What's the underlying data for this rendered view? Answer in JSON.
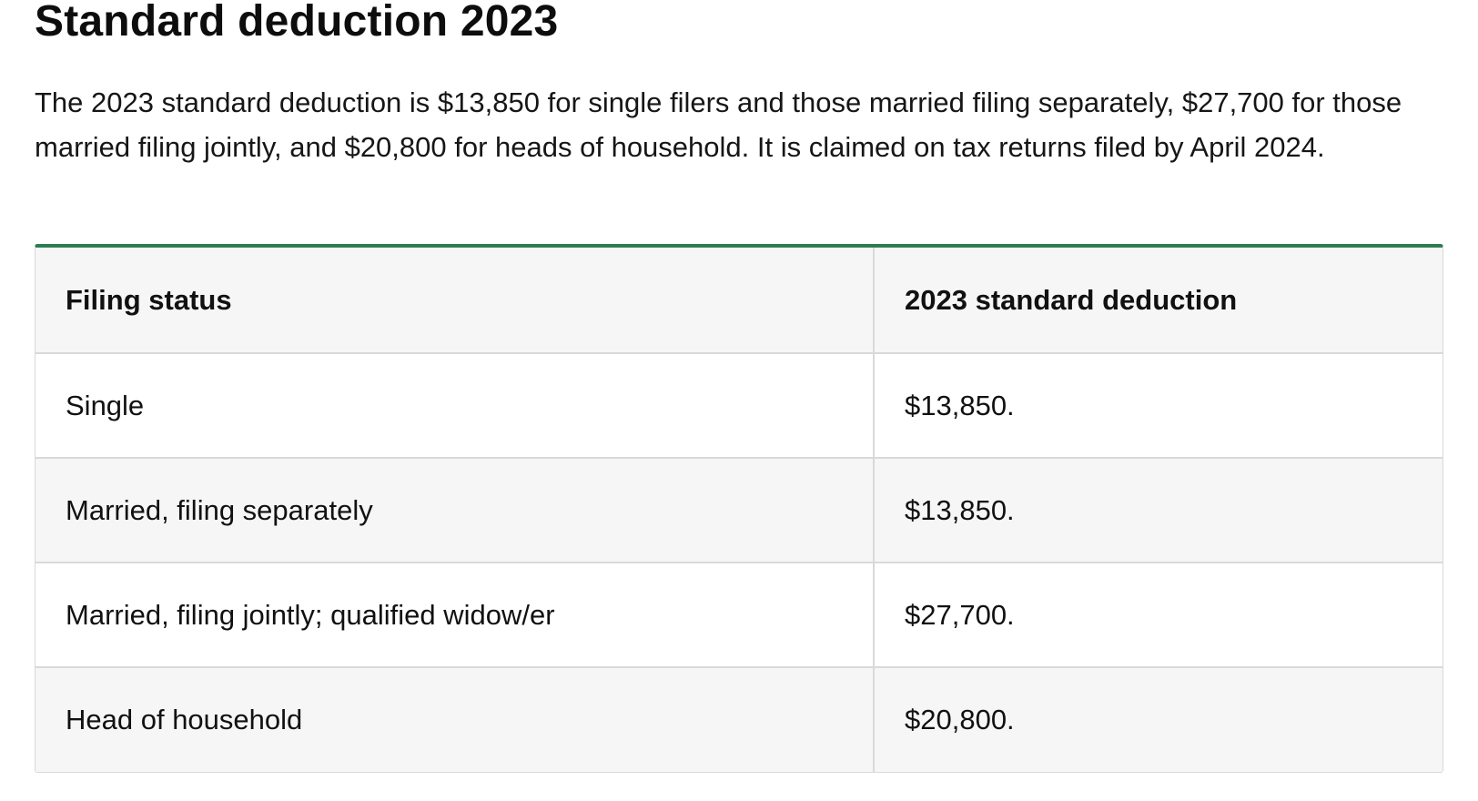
{
  "article": {
    "title": "Standard deduction 2023",
    "intro": "The 2023 standard deduction is $13,850 for single filers and those married filing separately, $27,700 for those married filing jointly, and $20,800 for heads of household. It is claimed on tax returns filed by April 2024."
  },
  "table": {
    "headers": [
      "Filing status",
      "2023 standard deduction"
    ],
    "rows": [
      [
        "Single",
        "$13,850."
      ],
      [
        "Married, filing separately",
        "$13,850."
      ],
      [
        "Married, filing jointly; qualified widow/er",
        "$27,700."
      ],
      [
        "Head of household",
        "$20,800."
      ]
    ],
    "accent_color": "#2f7d4f"
  }
}
